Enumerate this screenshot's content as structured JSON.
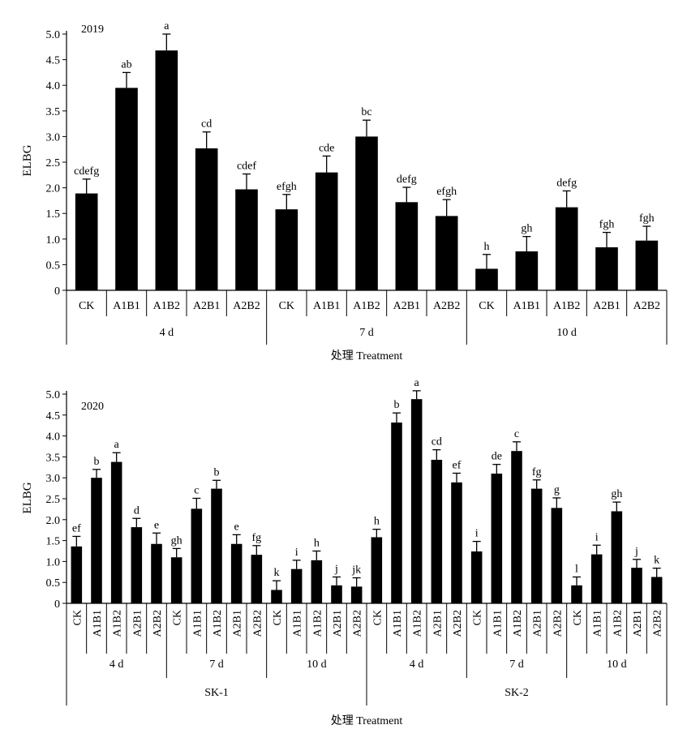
{
  "chart_data": [
    {
      "type": "bar",
      "year_label": "2019",
      "ylabel": "ELBG",
      "xlabel": "处理 Treatment",
      "ylim": [
        0,
        5.0
      ],
      "yticks": [
        "0",
        "0.5",
        "1.0",
        "1.5",
        "2.0",
        "2.5",
        "3.0",
        "3.5",
        "4.0",
        "4.5",
        "5.0"
      ],
      "grid": false,
      "legend": "none",
      "bar_color": "#000000",
      "groups": [
        {
          "label": "4 d",
          "categories": [
            "CK",
            "A1B1",
            "A1B2",
            "A2B1",
            "A2B2"
          ],
          "values": [
            1.89,
            3.95,
            4.68,
            2.77,
            1.97
          ],
          "errors": [
            0.28,
            0.3,
            0.32,
            0.32,
            0.3
          ],
          "letters": [
            "cdefg",
            "ab",
            "a",
            "cd",
            "cdef"
          ]
        },
        {
          "label": "7 d",
          "categories": [
            "CK",
            "A1B1",
            "A1B2",
            "A2B1",
            "A2B2"
          ],
          "values": [
            1.58,
            2.3,
            3.0,
            1.72,
            1.45
          ],
          "errors": [
            0.29,
            0.32,
            0.32,
            0.29,
            0.32
          ],
          "letters": [
            "efgh",
            "cde",
            "bc",
            "defg",
            "efgh"
          ]
        },
        {
          "label": "10 d",
          "categories": [
            "CK",
            "A1B1",
            "A1B2",
            "A2B1",
            "A2B2"
          ],
          "values": [
            0.42,
            0.76,
            1.62,
            0.84,
            0.97
          ],
          "errors": [
            0.28,
            0.29,
            0.32,
            0.29,
            0.28
          ],
          "letters": [
            "h",
            "gh",
            "defg",
            "fgh",
            "fgh"
          ]
        }
      ]
    },
    {
      "type": "bar",
      "year_label": "2020",
      "ylabel": "ELBG",
      "xlabel": "处理 Treatment",
      "ylim": [
        0,
        5.0
      ],
      "yticks": [
        "0",
        "0.5",
        "1.0",
        "1.5",
        "2.0",
        "2.5",
        "3.0",
        "3.5",
        "4.0",
        "4.5",
        "5.0"
      ],
      "grid": false,
      "legend": "none",
      "bar_color": "#000000",
      "sites": [
        "SK-1",
        "SK-2"
      ],
      "groups": [
        {
          "site": "SK-1",
          "label": "4 d",
          "categories": [
            "CK",
            "A1B1",
            "A1B2",
            "A2B1",
            "A2B2"
          ],
          "values": [
            1.36,
            3.0,
            3.38,
            1.82,
            1.42
          ],
          "errors": [
            0.24,
            0.2,
            0.22,
            0.21,
            0.26
          ],
          "letters": [
            "ef",
            "b",
            "a",
            "d",
            "e"
          ]
        },
        {
          "site": "SK-1",
          "label": "7 d",
          "categories": [
            "CK",
            "A1B1",
            "A1B2",
            "A2B1",
            "A2B2"
          ],
          "values": [
            1.1,
            2.26,
            2.74,
            1.42,
            1.16
          ],
          "errors": [
            0.21,
            0.25,
            0.2,
            0.22,
            0.22
          ],
          "letters": [
            "gh",
            "c",
            "b",
            "e",
            "fg"
          ]
        },
        {
          "site": "SK-1",
          "label": "10 d",
          "categories": [
            "CK",
            "A1B1",
            "A1B2",
            "A2B1",
            "A2B2"
          ],
          "values": [
            0.32,
            0.82,
            1.03,
            0.43,
            0.4
          ],
          "errors": [
            0.22,
            0.21,
            0.22,
            0.2,
            0.21
          ],
          "letters": [
            "k",
            "i",
            "h",
            "j",
            "jk"
          ]
        },
        {
          "site": "SK-2",
          "label": "4 d",
          "categories": [
            "CK",
            "A1B1",
            "A1B2",
            "A2B1",
            "A2B2"
          ],
          "values": [
            1.58,
            4.32,
            4.88,
            3.43,
            2.89
          ],
          "errors": [
            0.19,
            0.23,
            0.2,
            0.24,
            0.22
          ],
          "letters": [
            "h",
            "b",
            "a",
            "cd",
            "ef"
          ]
        },
        {
          "site": "SK-2",
          "label": "7 d",
          "categories": [
            "CK",
            "A1B1",
            "A1B2",
            "A2B1",
            "A2B2"
          ],
          "values": [
            1.24,
            3.1,
            3.64,
            2.74,
            2.28
          ],
          "errors": [
            0.24,
            0.22,
            0.22,
            0.21,
            0.24
          ],
          "letters": [
            "i",
            "de",
            "c",
            "fg",
            "g"
          ]
        },
        {
          "site": "SK-2",
          "label": "10 d",
          "categories": [
            "CK",
            "A1B1",
            "A1B2",
            "A2B1",
            "A2B2"
          ],
          "values": [
            0.43,
            1.17,
            2.2,
            0.85,
            0.63
          ],
          "errors": [
            0.2,
            0.22,
            0.22,
            0.2,
            0.21
          ],
          "letters": [
            "l",
            "i",
            "gh",
            "j",
            "k"
          ]
        }
      ]
    }
  ]
}
